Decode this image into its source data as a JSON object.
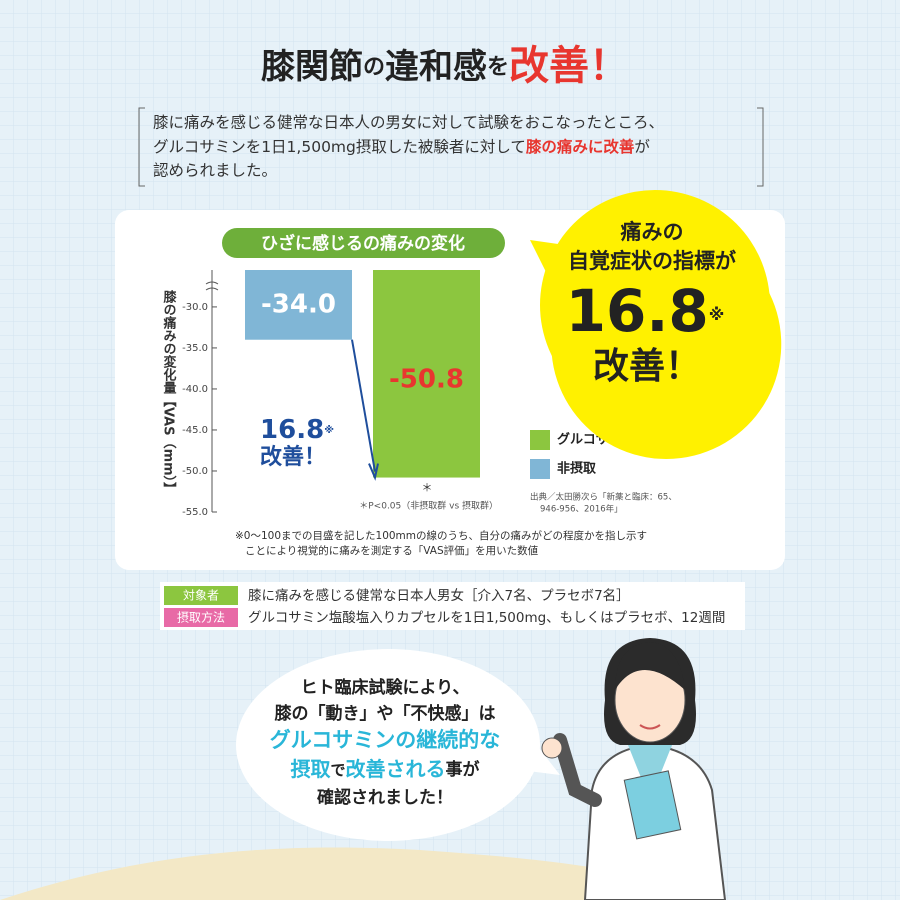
{
  "header": {
    "title_parts": [
      "膝関節",
      "の",
      "違和感",
      "を",
      "改善！"
    ]
  },
  "intro": {
    "line_1": "膝に痛みを感じる健常な日本人の男女に対して試験をおこなったところ、",
    "line_2": "グルコサミンを1日1,500mg摂取した被験者に対して",
    "accent": "膝の痛みに改善",
    "line_2_end": "が",
    "line_3": "認められました。"
  },
  "chart_data": {
    "type": "bar",
    "title": "ひざに感じるの痛みの変化",
    "y_label": "膝の痛みの変化量【VAS（mm）】",
    "categories": [
      null,
      null
    ],
    "values": [
      -34.0,
      -50.8
    ],
    "value_labels": [
      "-34.0",
      "-50.8"
    ],
    "colors": [
      "#80b6d6",
      "#8cc63f"
    ],
    "legend": [
      {
        "name": "グルコサミン摂取",
        "color": "#8cc63f"
      },
      {
        "name": "非摂取",
        "color": "#80b6d6"
      }
    ],
    "ylim": [
      -55,
      -25.5
    ],
    "yticks": [
      {
        "value": -30,
        "label": "-30.0"
      },
      {
        "value": -35,
        "label": "-35.0"
      },
      {
        "value": -40,
        "label": "-40.0"
      },
      {
        "value": -45,
        "label": "-45.0"
      },
      {
        "value": -50,
        "label": "-50.0"
      },
      {
        "value": -55,
        "label": "-55.0"
      }
    ],
    "annotations": {
      "difference": "16.8",
      "difference_mark": "※",
      "difference_text": "改善！",
      "significance": "＊",
      "significance_note": "＊P<0.05（非摂取群 vs 摂取群）",
      "source_1": "出典／太田勝次ら「新薬と臨床：65、",
      "source_2": "946-956、2016年」"
    }
  },
  "callout": {
    "line_1": "痛みの",
    "line_2": "自覚症状の指標が",
    "number": "16.8",
    "mark": "※",
    "line_3": "改善！"
  },
  "footnote": {
    "line_1": "※0～100までの目盛を記した100mmの線のうち、自分の痛みがどの程度かを指し示す",
    "line_2": "ことにより視覚的に痛みを測定する「VAS評価」を用いた数値"
  },
  "table": {
    "rows": [
      [
        "対象者",
        "膝に痛みを感じる健常な日本人男女［介入7名、プラセボ7名］"
      ],
      [
        "摂取方法",
        "グルコサミン塩酸塩入りカプセルを1日1,500mg、もしくはプラセボ、12週間"
      ]
    ]
  },
  "bubble": {
    "line_1": "ヒト臨床試験により、",
    "line_2": "膝の「動き」や「不快感」は",
    "line_3": "グルコサミンの継続的な",
    "line_4_a": "摂取",
    "line_4_b": "で",
    "line_4_c": "改善される",
    "line_4_d": "事が",
    "line_5": "確認されました！"
  }
}
